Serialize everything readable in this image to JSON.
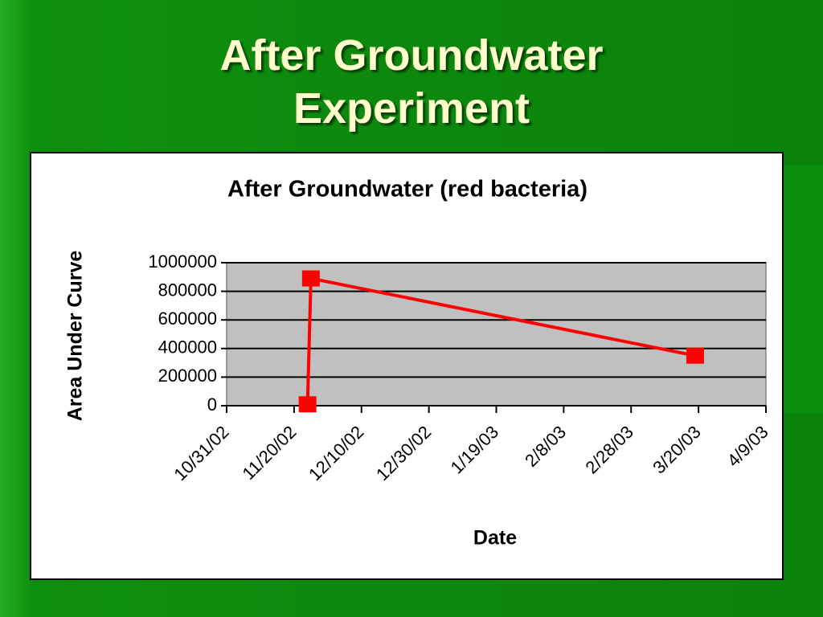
{
  "slide": {
    "title": "After Groundwater Experiment"
  },
  "chart_data": {
    "type": "line",
    "title": "After Groundwater (red bacteria)",
    "xlabel": "Date",
    "ylabel": "Area Under Curve",
    "x": [
      "11/24/02",
      "11/25/02",
      "3/19/03"
    ],
    "values": [
      10000,
      890000,
      350000
    ],
    "color": "#ff0000",
    "marker": "square",
    "xlim": [
      "10/31/02",
      "4/9/03"
    ],
    "xticks": [
      "10/31/02",
      "11/20/02",
      "12/10/02",
      "12/30/02",
      "1/19/03",
      "2/8/03",
      "2/28/03",
      "3/20/03",
      "4/9/03"
    ],
    "ylim": [
      0,
      1000000
    ],
    "yticks": [
      0,
      200000,
      400000,
      600000,
      800000,
      1000000
    ],
    "grid": true
  }
}
